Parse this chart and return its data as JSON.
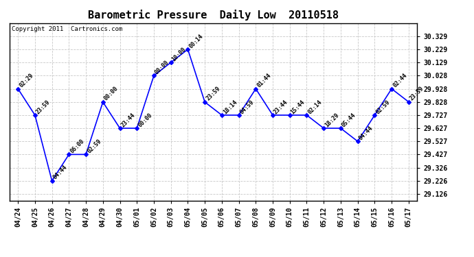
{
  "title": "Barometric Pressure  Daily Low  20110518",
  "copyright": "Copyright 2011  Cartronics.com",
  "x_labels": [
    "04/24",
    "04/25",
    "04/26",
    "04/27",
    "04/28",
    "04/29",
    "04/30",
    "05/01",
    "05/02",
    "05/03",
    "05/04",
    "05/05",
    "05/06",
    "05/07",
    "05/08",
    "05/09",
    "05/10",
    "05/11",
    "05/12",
    "05/13",
    "05/14",
    "05/15",
    "05/16",
    "05/17"
  ],
  "y_values": [
    29.928,
    29.727,
    29.226,
    29.427,
    29.427,
    29.827,
    29.627,
    29.627,
    30.028,
    30.129,
    30.229,
    29.827,
    29.727,
    29.727,
    29.928,
    29.727,
    29.727,
    29.727,
    29.627,
    29.627,
    29.527,
    29.727,
    29.928,
    29.828
  ],
  "annotations": [
    "02:29",
    "23:59",
    "04:44",
    "06:00",
    "02:59",
    "00:00",
    "23:44",
    "00:00",
    "00:00",
    "10:00",
    "00:14",
    "23:59",
    "18:14",
    "04:59",
    "01:44",
    "23:44",
    "15:44",
    "02:14",
    "18:29",
    "05:44",
    "04:44",
    "02:59",
    "02:44",
    "23:59"
  ],
  "y_ticks": [
    29.126,
    29.226,
    29.326,
    29.427,
    29.527,
    29.627,
    29.727,
    29.828,
    29.928,
    30.028,
    30.129,
    30.229,
    30.329
  ],
  "y_tick_labels": [
    "29.126",
    "29.226",
    "29.326",
    "29.427",
    "29.527",
    "29.627",
    "29.727",
    "29.828",
    "29.928",
    "30.028",
    "30.129",
    "30.229",
    "30.329"
  ],
  "ylim": [
    29.076,
    30.429
  ],
  "line_color": "blue",
  "marker": "D",
  "marker_size": 3,
  "background_color": "#ffffff",
  "grid_color": "#c8c8c8",
  "title_fontsize": 11,
  "annotation_fontsize": 6,
  "tick_fontsize": 7,
  "copyright_fontsize": 6.5
}
